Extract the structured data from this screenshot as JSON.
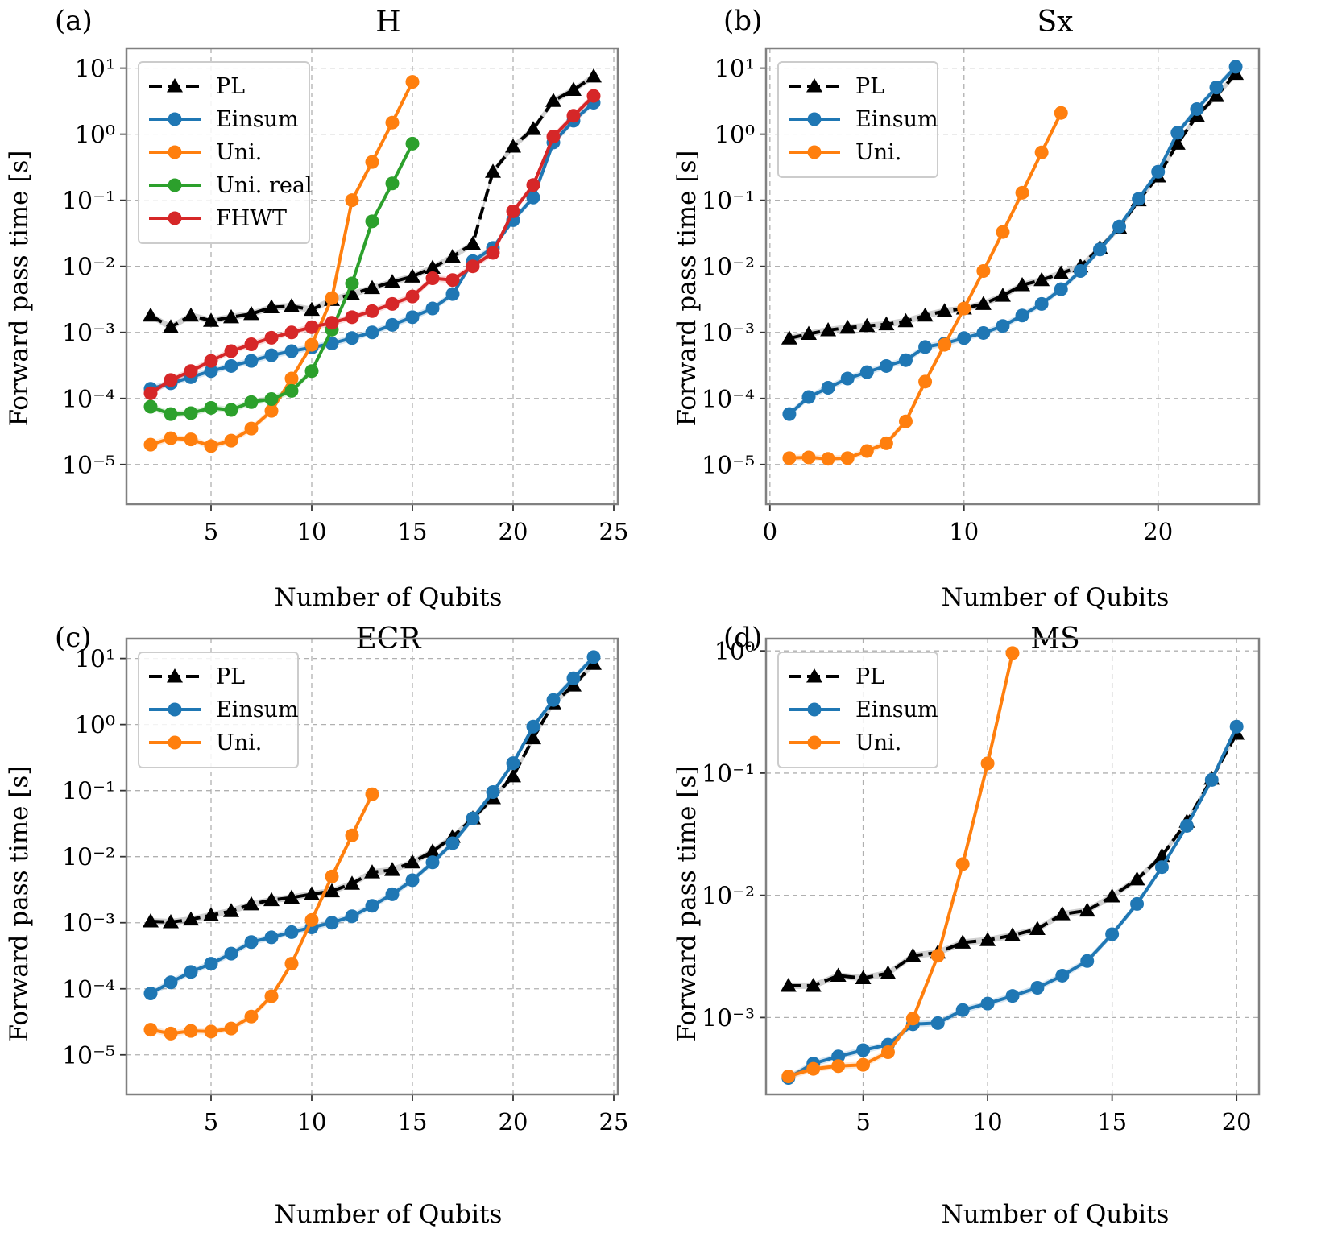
{
  "colors": {
    "PL": "#000000",
    "Einsum": "#1f77b4",
    "Uni.": "#ff7f0e",
    "Uni. real": "#2ca02c",
    "FHWT": "#d62728"
  },
  "chart_data": [
    {
      "type": "line",
      "label": "(a)",
      "title": "H",
      "xlabel": "Number of Qubits",
      "ylabel": "Forward pass time [s]",
      "y_scale": "log",
      "xlim": [
        0.8,
        25.2
      ],
      "ylim_exp": [
        -5.6,
        1.3
      ],
      "x_ticks": [
        5,
        10,
        15,
        20,
        25
      ],
      "x_tick_labels": [
        "5",
        "10",
        "15",
        "20",
        "25"
      ],
      "y_ticks": [
        -5,
        -4,
        -3,
        -2,
        -1,
        0,
        1
      ],
      "legend_position": "top-left",
      "series": [
        {
          "name": "PL",
          "marker": "triangle",
          "dashed": true,
          "x": [
            2,
            3,
            4,
            5,
            6,
            7,
            8,
            9,
            10,
            11,
            12,
            13,
            14,
            15,
            16,
            17,
            18,
            19,
            20,
            21,
            22,
            23,
            24
          ],
          "y": [
            0.0018,
            0.0012,
            0.0018,
            0.0015,
            0.0017,
            0.0019,
            0.0024,
            0.0025,
            0.0022,
            0.0031,
            0.0038,
            0.0047,
            0.0058,
            0.007,
            0.0095,
            0.014,
            0.022,
            0.27,
            0.65,
            1.2,
            3.2,
            4.7,
            7.5
          ]
        },
        {
          "name": "Einsum",
          "marker": "circle",
          "dashed": false,
          "x": [
            2,
            3,
            4,
            5,
            6,
            7,
            8,
            9,
            10,
            11,
            12,
            13,
            14,
            15,
            16,
            17,
            18,
            19,
            20,
            21,
            22,
            23,
            24
          ],
          "y": [
            0.00014,
            0.00017,
            0.00021,
            0.00026,
            0.00031,
            0.00037,
            0.00045,
            0.00052,
            0.00059,
            0.00068,
            0.00082,
            0.001,
            0.0013,
            0.0017,
            0.0023,
            0.0038,
            0.012,
            0.019,
            0.05,
            0.11,
            0.75,
            1.6,
            3.0
          ]
        },
        {
          "name": "Uni.",
          "marker": "circle",
          "dashed": false,
          "x": [
            2,
            3,
            4,
            5,
            6,
            7,
            8,
            9,
            10,
            11,
            12,
            13,
            14,
            15
          ],
          "y": [
            2e-05,
            2.5e-05,
            2.4e-05,
            1.9e-05,
            2.3e-05,
            3.5e-05,
            6.5e-05,
            0.0002,
            0.00065,
            0.0033,
            0.1,
            0.38,
            1.5,
            6.2
          ]
        },
        {
          "name": "Uni. real",
          "marker": "circle",
          "dashed": false,
          "x": [
            2,
            3,
            4,
            5,
            6,
            7,
            8,
            9,
            10,
            11,
            12,
            13,
            14,
            15
          ],
          "y": [
            7.5e-05,
            5.8e-05,
            6e-05,
            7.2e-05,
            6.7e-05,
            8.8e-05,
            9.8e-05,
            0.00013,
            0.00026,
            0.0011,
            0.0055,
            0.048,
            0.18,
            0.72
          ]
        },
        {
          "name": "FHWT",
          "marker": "circle",
          "dashed": false,
          "x": [
            2,
            3,
            4,
            5,
            6,
            7,
            8,
            9,
            10,
            11,
            12,
            13,
            14,
            15,
            16,
            17,
            18,
            19,
            20,
            21,
            22,
            23,
            24
          ],
          "y": [
            0.00012,
            0.00019,
            0.00026,
            0.00037,
            0.00052,
            0.00066,
            0.00083,
            0.001,
            0.0012,
            0.0014,
            0.0017,
            0.0021,
            0.0027,
            0.0035,
            0.0066,
            0.0062,
            0.01,
            0.016,
            0.068,
            0.17,
            0.92,
            1.9,
            3.8
          ]
        }
      ]
    },
    {
      "type": "line",
      "label": "(b)",
      "title": "Sx",
      "xlabel": "Number of Qubits",
      "ylabel": "Forward pass time [s]",
      "y_scale": "log",
      "xlim": [
        -0.2,
        25.2
      ],
      "ylim_exp": [
        -5.6,
        1.3
      ],
      "x_ticks": [
        0,
        10,
        20
      ],
      "x_tick_labels": [
        "0",
        "10",
        "20"
      ],
      "y_ticks": [
        -5,
        -4,
        -3,
        -2,
        -1,
        0,
        1
      ],
      "legend_position": "top-left",
      "series": [
        {
          "name": "PL",
          "marker": "triangle",
          "dashed": true,
          "x": [
            1,
            2,
            3,
            4,
            5,
            6,
            7,
            8,
            9,
            10,
            11,
            12,
            13,
            14,
            15,
            16,
            17,
            18,
            19,
            20,
            21,
            22,
            23,
            24
          ],
          "y": [
            0.00081,
            0.00095,
            0.00108,
            0.00118,
            0.00125,
            0.00133,
            0.00148,
            0.0018,
            0.0021,
            0.0023,
            0.0027,
            0.0036,
            0.0052,
            0.0062,
            0.0078,
            0.01,
            0.019,
            0.038,
            0.1,
            0.23,
            0.72,
            1.9,
            3.8,
            8.2
          ]
        },
        {
          "name": "Einsum",
          "marker": "circle",
          "dashed": false,
          "x": [
            1,
            2,
            3,
            4,
            5,
            6,
            7,
            8,
            9,
            10,
            11,
            12,
            13,
            14,
            15,
            16,
            17,
            18,
            19,
            20,
            21,
            22,
            23,
            24
          ],
          "y": [
            5.8e-05,
            0.000105,
            0.000145,
            0.0002,
            0.00025,
            0.00031,
            0.00038,
            0.0006,
            0.00068,
            0.00082,
            0.00098,
            0.00125,
            0.0018,
            0.0027,
            0.0045,
            0.0085,
            0.018,
            0.04,
            0.105,
            0.27,
            1.05,
            2.4,
            5.1,
            10.5
          ]
        },
        {
          "name": "Uni.",
          "marker": "circle",
          "dashed": false,
          "x": [
            1,
            2,
            3,
            4,
            5,
            6,
            7,
            8,
            9,
            10,
            11,
            12,
            13,
            14,
            15
          ],
          "y": [
            1.25e-05,
            1.28e-05,
            1.22e-05,
            1.25e-05,
            1.6e-05,
            2.1e-05,
            4.5e-05,
            0.00018,
            0.00065,
            0.0023,
            0.0085,
            0.033,
            0.13,
            0.53,
            2.1
          ]
        }
      ]
    },
    {
      "type": "line",
      "label": "(c)",
      "title": "ECR",
      "xlabel": "Number of Qubits",
      "ylabel": "Forward pass time [s]",
      "y_scale": "log",
      "xlim": [
        0.8,
        25.2
      ],
      "ylim_exp": [
        -5.6,
        1.3
      ],
      "x_ticks": [
        5,
        10,
        15,
        20,
        25
      ],
      "x_tick_labels": [
        "5",
        "10",
        "15",
        "20",
        "25"
      ],
      "y_ticks": [
        -5,
        -4,
        -3,
        -2,
        -1,
        0,
        1
      ],
      "legend_position": "top-left",
      "series": [
        {
          "name": "PL",
          "marker": "triangle",
          "dashed": true,
          "x": [
            2,
            3,
            4,
            5,
            6,
            7,
            8,
            9,
            10,
            11,
            12,
            13,
            14,
            15,
            16,
            17,
            18,
            19,
            20,
            21,
            22,
            23,
            24
          ],
          "y": [
            0.00105,
            0.00102,
            0.00112,
            0.0013,
            0.0015,
            0.0019,
            0.0022,
            0.0024,
            0.0027,
            0.003,
            0.0039,
            0.0058,
            0.0063,
            0.0082,
            0.012,
            0.02,
            0.038,
            0.077,
            0.165,
            0.62,
            2.1,
            3.9,
            8.3
          ]
        },
        {
          "name": "Einsum",
          "marker": "circle",
          "dashed": false,
          "x": [
            2,
            3,
            4,
            5,
            6,
            7,
            8,
            9,
            10,
            11,
            12,
            13,
            14,
            15,
            16,
            17,
            18,
            19,
            20,
            21,
            22,
            23,
            24
          ],
          "y": [
            8.5e-05,
            0.000125,
            0.00018,
            0.00024,
            0.00034,
            0.00051,
            0.0006,
            0.00072,
            0.00085,
            0.001,
            0.00125,
            0.0018,
            0.0027,
            0.0044,
            0.0082,
            0.016,
            0.038,
            0.095,
            0.26,
            0.93,
            2.35,
            5.0,
            10.5
          ]
        },
        {
          "name": "Uni.",
          "marker": "circle",
          "dashed": false,
          "x": [
            2,
            3,
            4,
            5,
            6,
            7,
            8,
            9,
            10,
            11,
            12,
            13
          ],
          "y": [
            2.4e-05,
            2.1e-05,
            2.3e-05,
            2.25e-05,
            2.5e-05,
            3.8e-05,
            7.7e-05,
            0.00024,
            0.0011,
            0.005,
            0.021,
            0.088
          ]
        }
      ]
    },
    {
      "type": "line",
      "label": "(d)",
      "title": "MS",
      "xlabel": "Number of Qubits",
      "ylabel": "Forward pass time [s]",
      "y_scale": "log",
      "xlim": [
        1.1,
        20.9
      ],
      "ylim_exp": [
        -3.63,
        0.1
      ],
      "x_ticks": [
        5,
        10,
        15,
        20
      ],
      "x_tick_labels": [
        "5",
        "10",
        "15",
        "20"
      ],
      "y_ticks": [
        -3,
        -2,
        -1,
        0
      ],
      "legend_position": "top-left",
      "series": [
        {
          "name": "PL",
          "marker": "triangle",
          "dashed": true,
          "x": [
            2,
            3,
            4,
            5,
            6,
            7,
            8,
            9,
            10,
            11,
            12,
            13,
            14,
            15,
            16,
            17,
            18,
            19,
            20
          ],
          "y": [
            0.00182,
            0.00182,
            0.0022,
            0.0021,
            0.0023,
            0.0032,
            0.0034,
            0.0041,
            0.0043,
            0.0047,
            0.0053,
            0.007,
            0.0075,
            0.0098,
            0.0135,
            0.021,
            0.04,
            0.09,
            0.21
          ]
        },
        {
          "name": "Einsum",
          "marker": "circle",
          "dashed": false,
          "x": [
            2,
            3,
            4,
            5,
            6,
            7,
            8,
            9,
            10,
            11,
            12,
            13,
            14,
            15,
            16,
            17,
            18,
            19,
            20
          ],
          "y": [
            0.00032,
            0.00042,
            0.00048,
            0.00054,
            0.0006,
            0.00088,
            0.0009,
            0.00115,
            0.0013,
            0.0015,
            0.00175,
            0.0022,
            0.0029,
            0.0048,
            0.0085,
            0.017,
            0.037,
            0.088,
            0.24
          ]
        },
        {
          "name": "Uni.",
          "marker": "circle",
          "dashed": false,
          "x": [
            2,
            3,
            4,
            5,
            6,
            7,
            8,
            9,
            10,
            11
          ],
          "y": [
            0.00033,
            0.00038,
            0.0004,
            0.00041,
            0.00052,
            0.00098,
            0.0032,
            0.018,
            0.12,
            0.96
          ]
        }
      ]
    }
  ]
}
